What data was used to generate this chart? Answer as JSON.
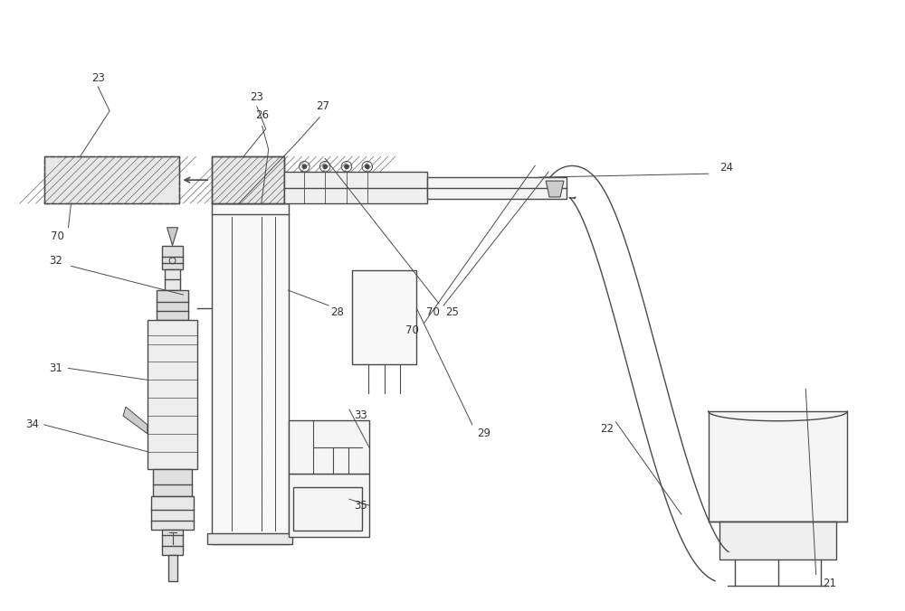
{
  "bg_color": "#ffffff",
  "lc": "#4a4a4a",
  "fig_w": 10.0,
  "fig_h": 6.76,
  "dpi": 100
}
